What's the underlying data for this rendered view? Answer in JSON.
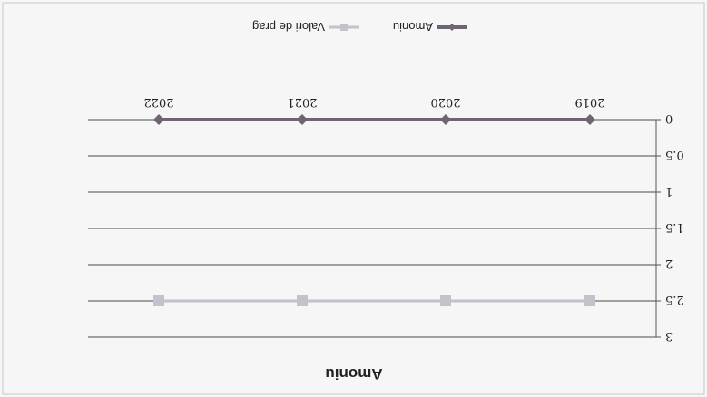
{
  "chart_data": {
    "type": "line",
    "title": "Amoniu",
    "categories": [
      "2019",
      "2020",
      "2021",
      "2022"
    ],
    "series": [
      {
        "name": "Amoniu",
        "values": [
          0,
          0,
          0,
          0
        ],
        "color": "#6e6474",
        "marker": "diamond"
      },
      {
        "name": "Valori de prag",
        "values": [
          2.5,
          2.5,
          2.5,
          2.5
        ],
        "color": "#c4c0cc",
        "marker": "square"
      }
    ],
    "ylim": [
      0,
      3
    ],
    "yticks": [
      "0",
      "0.5",
      "1",
      "1.5",
      "2",
      "2.5",
      "3"
    ],
    "grid": true,
    "legend_position": "bottom",
    "orientation": "rotated 180 degrees"
  }
}
